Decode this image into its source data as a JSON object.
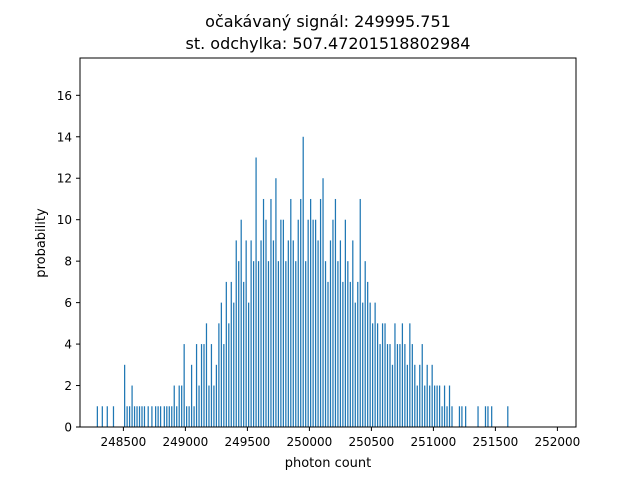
{
  "chart_data": {
    "type": "bar",
    "title": "očakávaný signál: 249995.751",
    "subtitle": "st. odchylka: 507.47201518802984",
    "xlabel": "photon count",
    "ylabel": "probability",
    "xlim": [
      248150,
      252150
    ],
    "ylim": [
      0,
      17.8
    ],
    "xticks": [
      248500,
      249000,
      249500,
      250000,
      250500,
      251000,
      251500,
      252000
    ],
    "xtick_labels": [
      "248500",
      "249000",
      "249500",
      "250000",
      "250500",
      "251000",
      "251500",
      "252000"
    ],
    "yticks": [
      0,
      2,
      4,
      6,
      8,
      10,
      12,
      14,
      16
    ],
    "ytick_labels": [
      "0",
      "2",
      "4",
      "6",
      "8",
      "10",
      "12",
      "14",
      "16"
    ],
    "grid": false,
    "colors": {
      "bar": "#1f77b4"
    },
    "bins": {
      "x": [
        248290,
        248330,
        248370,
        248420,
        248510,
        248530,
        248550,
        248570,
        248590,
        248610,
        248630,
        248650,
        248670,
        248700,
        248730,
        248760,
        248780,
        248800,
        248830,
        248850,
        248870,
        248890,
        248910,
        248930,
        248950,
        248970,
        248990,
        249010,
        249030,
        249050,
        249070,
        249090,
        249110,
        249130,
        249150,
        249170,
        249190,
        249210,
        249230,
        249250,
        249270,
        249290,
        249310,
        249330,
        249350,
        249370,
        249390,
        249410,
        249430,
        249450,
        249470,
        249490,
        249510,
        249530,
        249550,
        249570,
        249590,
        249610,
        249630,
        249650,
        249670,
        249690,
        249710,
        249730,
        249750,
        249770,
        249790,
        249810,
        249830,
        249850,
        249870,
        249890,
        249910,
        249930,
        249950,
        249970,
        249990,
        250010,
        250030,
        250050,
        250070,
        250090,
        250110,
        250130,
        250150,
        250170,
        250190,
        250210,
        250230,
        250250,
        250270,
        250290,
        250310,
        250330,
        250350,
        250370,
        250390,
        250410,
        250430,
        250450,
        250470,
        250490,
        250510,
        250530,
        250550,
        250570,
        250590,
        250610,
        250630,
        250650,
        250670,
        250690,
        250710,
        250730,
        250750,
        250770,
        250790,
        250810,
        250830,
        250850,
        250870,
        250890,
        250910,
        250930,
        250950,
        250970,
        250990,
        251010,
        251030,
        251050,
        251070,
        251090,
        251110,
        251130,
        251150,
        251210,
        251230,
        251260,
        251360,
        251420,
        251440,
        251470,
        251600
      ],
      "values": [
        1,
        1,
        1,
        1,
        3,
        1,
        1,
        2,
        1,
        1,
        1,
        1,
        1,
        1,
        1,
        1,
        1,
        1,
        1,
        1,
        1,
        1,
        2,
        1,
        2,
        2,
        4,
        1,
        1,
        3,
        1,
        4,
        2,
        4,
        4,
        5,
        2,
        4,
        2,
        3,
        5,
        6,
        4,
        7,
        5,
        7,
        6,
        9,
        8,
        10,
        7,
        9,
        6,
        9,
        8,
        13,
        8,
        9,
        11,
        10,
        8,
        11,
        9,
        12,
        8,
        10,
        10,
        8,
        9,
        11,
        9,
        8,
        10,
        11,
        14,
        8,
        10,
        11,
        10,
        10,
        9,
        11,
        12,
        8,
        7,
        9,
        10,
        11,
        8,
        9,
        7,
        10,
        8,
        7,
        9,
        6,
        7,
        11,
        6,
        8,
        7,
        6,
        5,
        6,
        5,
        4,
        5,
        5,
        4,
        4,
        3,
        5,
        4,
        4,
        5,
        4,
        3,
        5,
        4,
        3,
        2,
        3,
        4,
        2,
        3,
        2,
        3,
        2,
        2,
        2,
        1,
        2,
        1,
        2,
        1,
        1,
        1,
        1,
        1,
        1,
        1,
        1,
        1
      ],
      "width": 10
    }
  }
}
